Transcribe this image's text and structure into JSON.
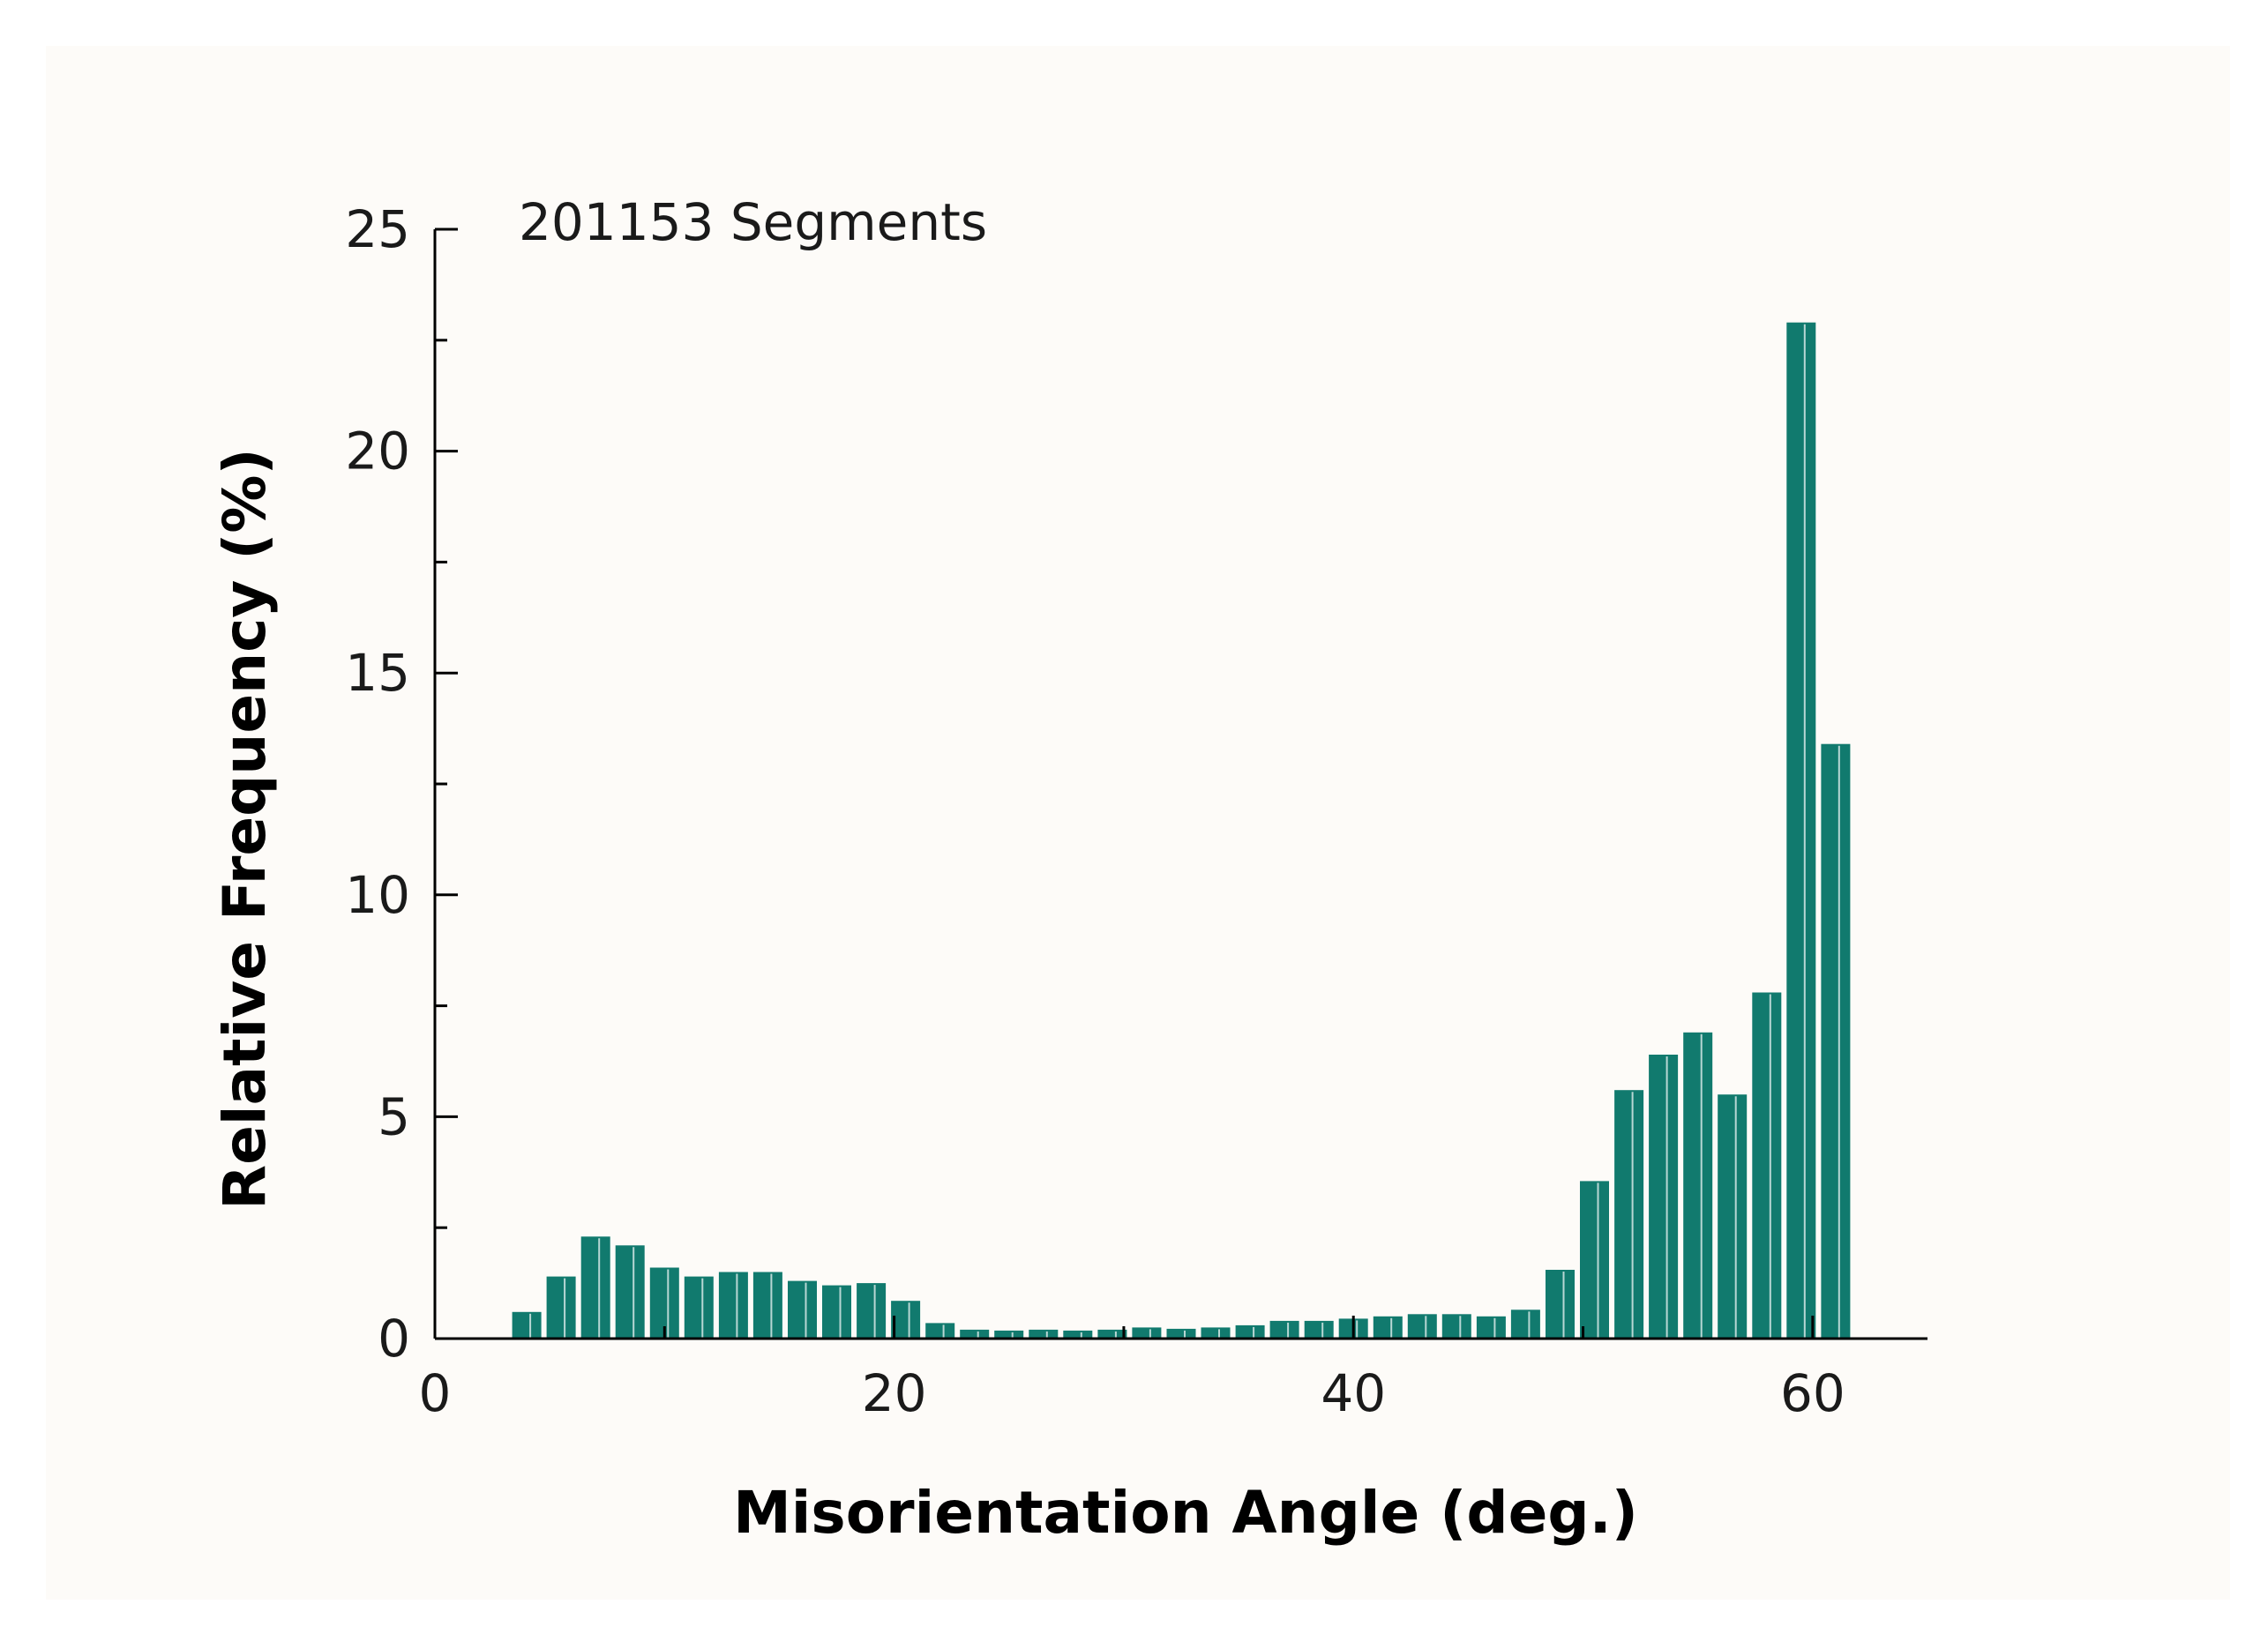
{
  "chart_data": {
    "type": "bar",
    "title": "",
    "annotation": "201153 Segments",
    "xlabel": "Misorientation Angle (deg.)",
    "ylabel": "Relative Frequency (%)",
    "xlim": [
      0,
      65
    ],
    "ylim": [
      0,
      25
    ],
    "xticks": [
      0,
      20,
      40,
      60
    ],
    "yticks": [
      0,
      5,
      10,
      15,
      20,
      25
    ],
    "bin_width": 1.5,
    "bar_color": "#117a6e",
    "x": [
      4,
      5.5,
      7,
      8.5,
      10,
      11.5,
      13,
      14.5,
      16,
      17.5,
      19,
      20.5,
      22,
      23.5,
      25,
      26.5,
      28,
      29.5,
      31,
      32.5,
      34,
      35.5,
      37,
      38.5,
      40,
      41.5,
      43,
      44.5,
      46,
      47.5,
      49,
      50.5,
      52,
      53.5,
      55,
      56.5,
      58,
      59.5,
      61
    ],
    "values": [
      0.6,
      1.4,
      2.3,
      2.1,
      1.6,
      1.4,
      1.5,
      1.5,
      1.3,
      1.2,
      1.25,
      0.85,
      0.35,
      0.2,
      0.18,
      0.2,
      0.18,
      0.2,
      0.25,
      0.22,
      0.25,
      0.3,
      0.4,
      0.4,
      0.45,
      0.5,
      0.55,
      0.55,
      0.5,
      0.65,
      1.55,
      3.55,
      5.6,
      6.4,
      6.9,
      5.5,
      7.8,
      22.9,
      13.4
    ]
  }
}
